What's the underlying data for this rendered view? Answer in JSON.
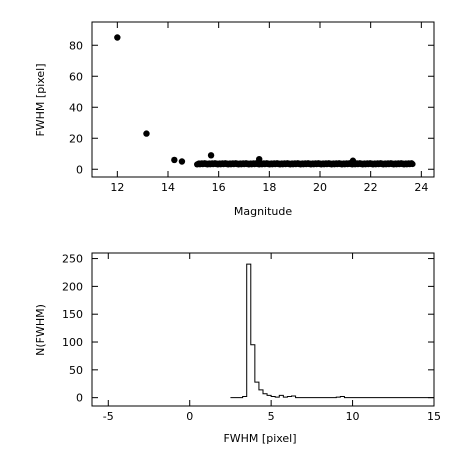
{
  "chart_data": [
    {
      "type": "scatter",
      "xlabel": "Magnitude",
      "ylabel": "FWHM [pixel]",
      "xlim": [
        11,
        24.5
      ],
      "ylim": [
        -5,
        95
      ],
      "xticks": [
        12,
        14,
        16,
        18,
        20,
        22,
        24
      ],
      "yticks": [
        0,
        20,
        40,
        60,
        80
      ],
      "outliers": [
        {
          "x": 12.0,
          "y": 85.0
        },
        {
          "x": 13.15,
          "y": 23.0
        },
        {
          "x": 14.25,
          "y": 6.0
        },
        {
          "x": 14.55,
          "y": 5.0
        },
        {
          "x": 15.7,
          "y": 9.0
        },
        {
          "x": 17.6,
          "y": 6.5
        },
        {
          "x": 21.3,
          "y": 5.5
        }
      ],
      "dense_band": {
        "x_start": 15.15,
        "x_end": 23.65,
        "y_center": 3.5,
        "count": 230
      },
      "grid": false
    },
    {
      "type": "histogram",
      "xlabel": "FWHM [pixel]",
      "ylabel": "N(FWHM)",
      "xlim": [
        -6,
        15
      ],
      "ylim": [
        -15,
        260
      ],
      "xticks": [
        -5,
        0,
        5,
        10,
        15
      ],
      "yticks": [
        0,
        50,
        100,
        150,
        200,
        250
      ],
      "bin_width": 0.25,
      "bins": [
        {
          "x": 2.5,
          "count": 0
        },
        {
          "x": 3.25,
          "count": 2
        },
        {
          "x": 3.5,
          "count": 240
        },
        {
          "x": 3.75,
          "count": 95
        },
        {
          "x": 4.0,
          "count": 28
        },
        {
          "x": 4.25,
          "count": 14
        },
        {
          "x": 4.5,
          "count": 7
        },
        {
          "x": 4.75,
          "count": 4
        },
        {
          "x": 5.0,
          "count": 2
        },
        {
          "x": 5.25,
          "count": 1
        },
        {
          "x": 5.5,
          "count": 4
        },
        {
          "x": 5.75,
          "count": 1
        },
        {
          "x": 6.0,
          "count": 2
        },
        {
          "x": 6.25,
          "count": 3
        },
        {
          "x": 6.5,
          "count": 0
        },
        {
          "x": 9.0,
          "count": 1
        },
        {
          "x": 9.25,
          "count": 2
        },
        {
          "x": 9.5,
          "count": 0
        },
        {
          "x": 14.75,
          "count": 0
        }
      ],
      "grid": false
    }
  ]
}
